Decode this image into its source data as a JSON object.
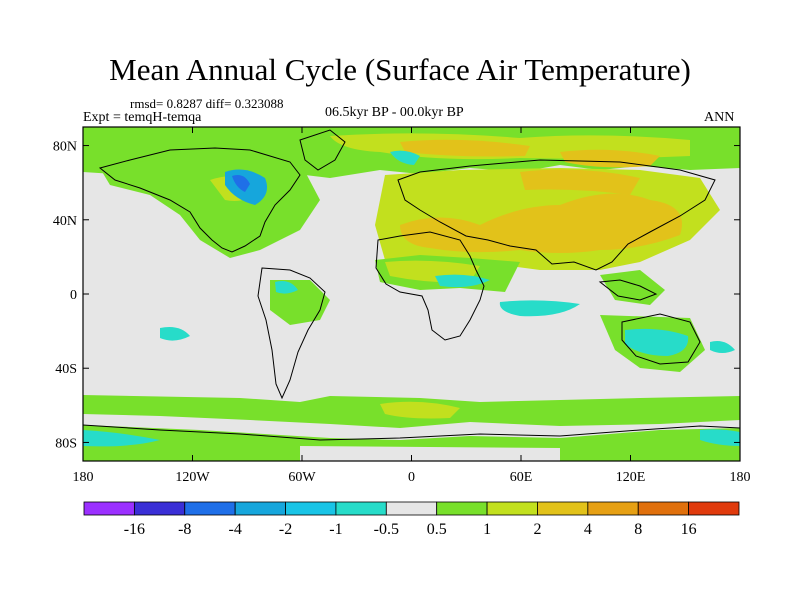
{
  "title": "Mean Annual Cycle (Surface Air Temperature)",
  "stats": "rmsd= 0.8287 diff= 0.323088",
  "experiment": "Expt = temqH-temqa",
  "period": "06.5kyr BP - 00.0kyr BP",
  "season": "ANN",
  "map": {
    "projection": "cylindrical equidistant",
    "lon_range": [
      -180,
      180
    ],
    "lat_range": [
      -90,
      90
    ],
    "x_ticks": [
      {
        "lon": -180,
        "label": "180"
      },
      {
        "lon": -120,
        "label": "120W"
      },
      {
        "lon": -60,
        "label": "60W"
      },
      {
        "lon": 0,
        "label": "0"
      },
      {
        "lon": 60,
        "label": "60E"
      },
      {
        "lon": 120,
        "label": "120E"
      },
      {
        "lon": 180,
        "label": "180"
      }
    ],
    "y_ticks": [
      {
        "lat": 80,
        "label": "80N"
      },
      {
        "lat": 40,
        "label": "40N"
      },
      {
        "lat": 0,
        "label": "0"
      },
      {
        "lat": -40,
        "label": "40S"
      },
      {
        "lat": -80,
        "label": "80S"
      }
    ]
  },
  "colorbar": {
    "boxes": [
      "#9b30ff",
      "#3a2fd6",
      "#1f6fe8",
      "#16a6dc",
      "#19c4e6",
      "#27dcc9",
      "#e6e6e6",
      "#78e02b",
      "#c2e01e",
      "#e2c21a",
      "#e6a014",
      "#e0700c",
      "#e03a0c"
    ],
    "labels": [
      "-16",
      "-8",
      "-4",
      "-2",
      "-1",
      "-0.5",
      "0.5",
      "1",
      "2",
      "4",
      "8",
      "16"
    ]
  }
}
